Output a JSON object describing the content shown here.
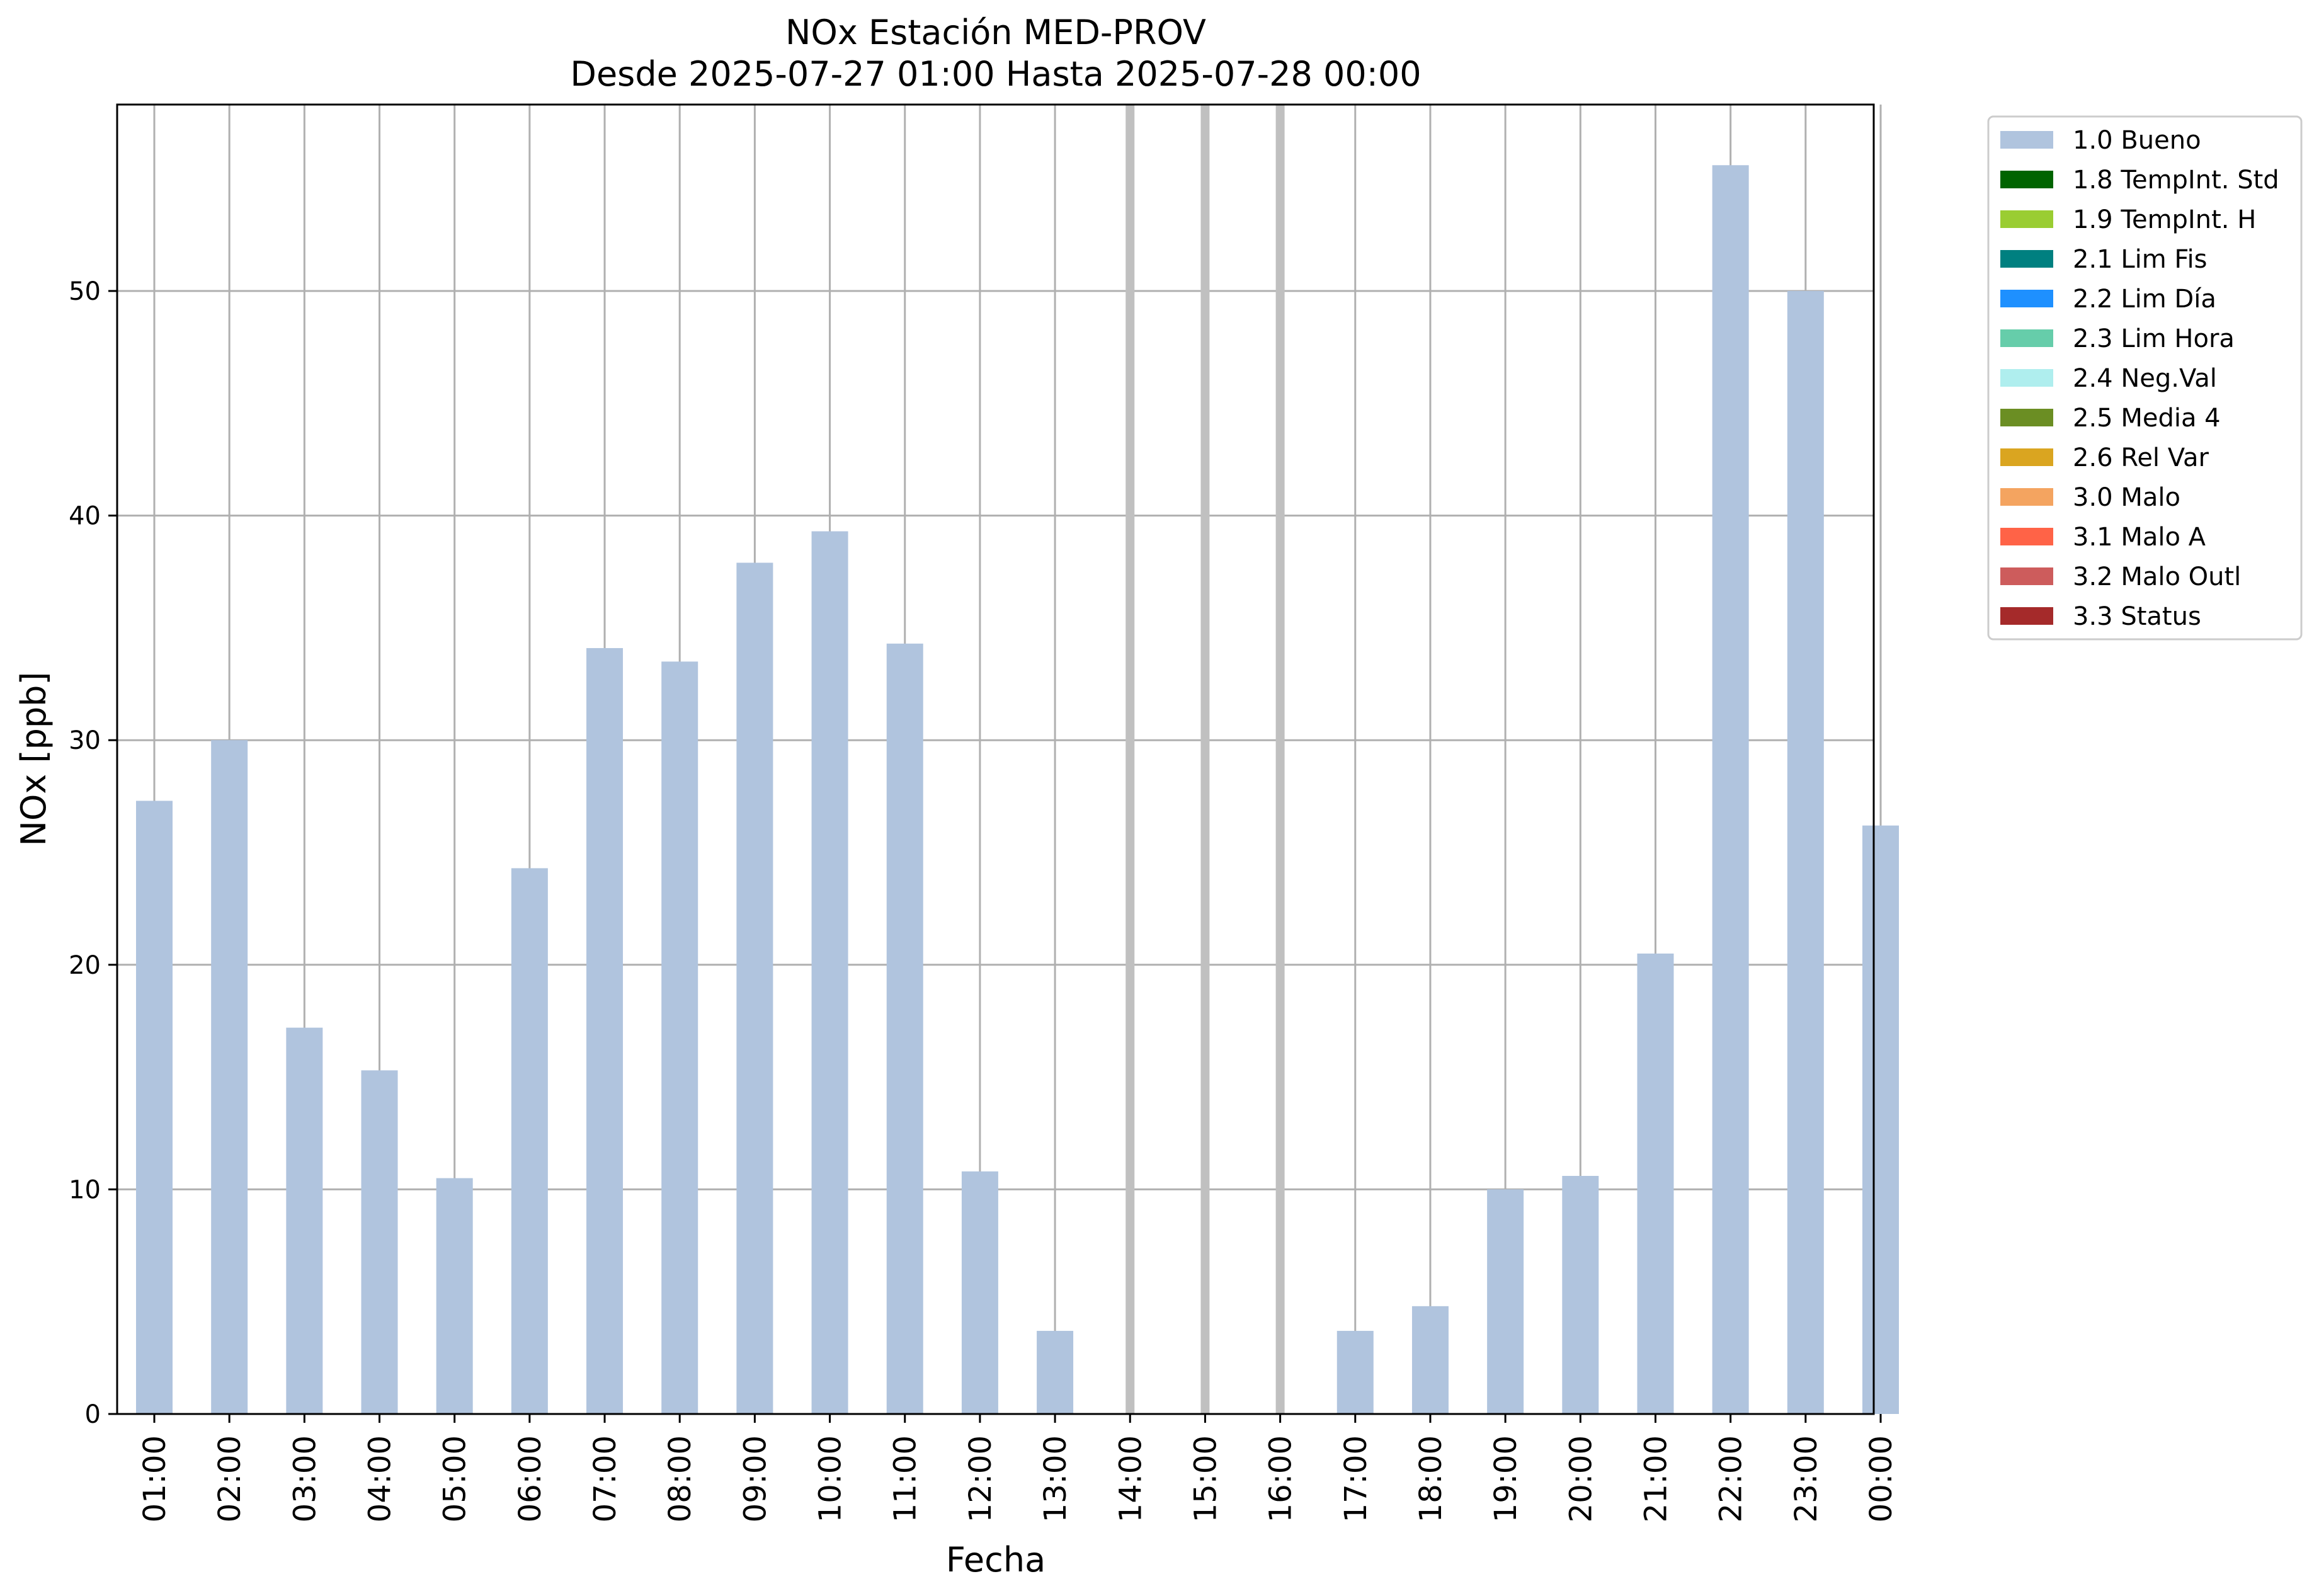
{
  "chart_data": {
    "type": "bar",
    "title": "NOx Estación MED-PROV",
    "subtitle": "Desde 2025-07-27 01:00 Hasta 2025-07-28 00:00",
    "xlabel": "Fecha",
    "ylabel": "NOx [ppb]",
    "ylim": [
      0,
      58.3
    ],
    "yticks": [
      0,
      10,
      20,
      30,
      40,
      50
    ],
    "grid": true,
    "legend_position": "outside-top-right",
    "categories": [
      "01:00",
      "02:00",
      "03:00",
      "04:00",
      "05:00",
      "06:00",
      "07:00",
      "08:00",
      "09:00",
      "10:00",
      "11:00",
      "12:00",
      "13:00",
      "14:00",
      "15:00",
      "16:00",
      "17:00",
      "18:00",
      "19:00",
      "20:00",
      "21:00",
      "22:00",
      "23:00",
      "00:00"
    ],
    "series": [
      {
        "name": "1.0 Bueno",
        "color": "#b0c4de",
        "values": [
          27.3,
          30.0,
          17.2,
          15.3,
          10.5,
          24.3,
          34.1,
          33.5,
          37.9,
          39.3,
          34.3,
          10.8,
          3.7,
          null,
          null,
          null,
          3.7,
          4.8,
          10.0,
          10.6,
          20.5,
          55.6,
          50.0,
          26.2
        ]
      }
    ],
    "missing_categories": [
      "14:00",
      "15:00",
      "16:00"
    ],
    "legend": [
      {
        "label": "1.0 Bueno",
        "color": "#b0c4de"
      },
      {
        "label": "1.8 TempInt. Std",
        "color": "#006400"
      },
      {
        "label": "1.9 TempInt. H",
        "color": "#9acd32"
      },
      {
        "label": "2.1 Lim Fis",
        "color": "#008080"
      },
      {
        "label": "2.2 Lim Día",
        "color": "#1e90ff"
      },
      {
        "label": "2.3 Lim Hora",
        "color": "#66cdaa"
      },
      {
        "label": "2.4 Neg.Val",
        "color": "#afeeee"
      },
      {
        "label": "2.5 Media 4",
        "color": "#6b8e23"
      },
      {
        "label": "2.6 Rel Var",
        "color": "#daa520"
      },
      {
        "label": "3.0 Malo",
        "color": "#f4a460"
      },
      {
        "label": "3.1 Malo A",
        "color": "#ff6347"
      },
      {
        "label": "3.2 Malo Outl",
        "color": "#cd5c5c"
      },
      {
        "label": "3.3 Status",
        "color": "#a52a2a"
      }
    ]
  }
}
